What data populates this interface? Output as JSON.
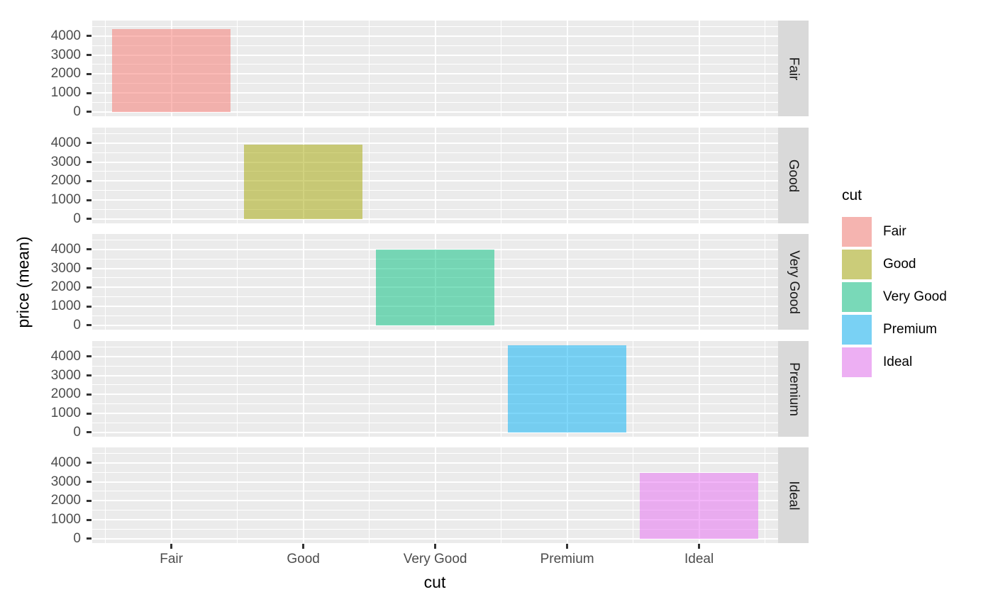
{
  "chart_data": {
    "type": "bar",
    "title": "",
    "xlabel": "cut",
    "ylabel": "price (mean)",
    "categories": [
      "Fair",
      "Good",
      "Very Good",
      "Premium",
      "Ideal"
    ],
    "values": [
      4358.76,
      3928.86,
      3981.76,
      4584.26,
      3457.54
    ],
    "facets": [
      "Fair",
      "Good",
      "Very Good",
      "Premium",
      "Ideal"
    ],
    "facet_note": "one facet row per cut level; each row shows only its own category's bar",
    "bar_colors": [
      "#F8766D",
      "#A3A500",
      "#00BF7D",
      "#00B0F6",
      "#E76BF3"
    ],
    "fill_alpha": 0.5,
    "ylim": [
      -229,
      4813
    ],
    "y_major_ticks": [
      0,
      1000,
      2000,
      3000,
      4000
    ],
    "y_minor_ticks": [
      500,
      1500,
      2500,
      3500,
      4500
    ],
    "y_tick_labels": [
      "0",
      "1000",
      "2000",
      "3000",
      "4000"
    ],
    "grid": "white major and minor gridlines on grey panel",
    "legend_position": "right",
    "legend": {
      "title": "cut",
      "entries": [
        {
          "label": "Fair",
          "color": "#F8766D"
        },
        {
          "label": "Good",
          "color": "#A3A500"
        },
        {
          "label": "Very Good",
          "color": "#00BF7D"
        },
        {
          "label": "Premium",
          "color": "#00B0F6"
        },
        {
          "label": "Ideal",
          "color": "#E76BF3"
        }
      ]
    }
  },
  "colors": {
    "panel_background": "#EBEBEB",
    "strip_background": "#D9D9D9",
    "gridline": "#FFFFFF",
    "tick_mark": "#333333",
    "axis_text": "#4D4D4D",
    "strip_text": "#1A1A1A",
    "axis_title": "#000000",
    "legend_key_background": "#F2F2F2",
    "page_background": "#FFFFFF"
  }
}
